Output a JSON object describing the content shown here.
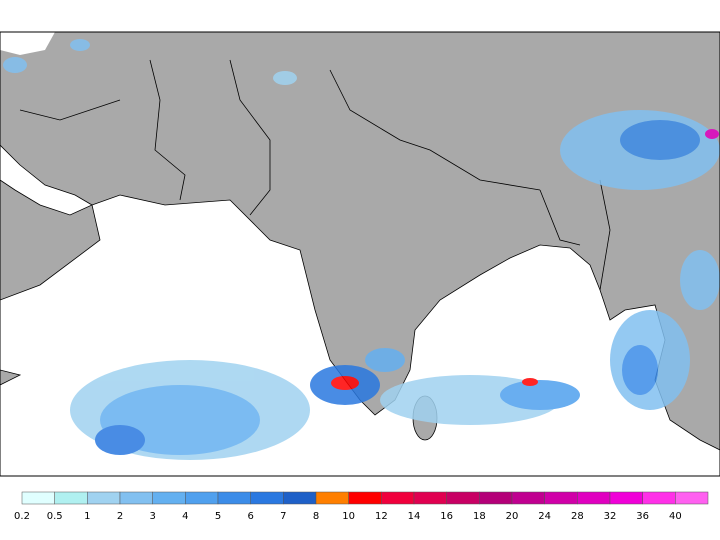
{
  "colorbar": {
    "labels": [
      0.2,
      0.5,
      1,
      2,
      3,
      4,
      5,
      6,
      7,
      8,
      10,
      12,
      14,
      16,
      18,
      20,
      24,
      28,
      32,
      36,
      40
    ],
    "colors": [
      "#e0ffff",
      "#b0f0f0",
      "#a0d2f0",
      "#82c0f0",
      "#64b0f0",
      "#50a0ee",
      "#3c8ce8",
      "#2a78e0",
      "#1e60c8",
      "#ff7f00",
      "#ff0000",
      "#f0003c",
      "#e00050",
      "#c80064",
      "#b40078",
      "#c00090",
      "#d000a8",
      "#e000c0",
      "#f000d8",
      "#ff30e8",
      "#ff60f0"
    ]
  }
}
